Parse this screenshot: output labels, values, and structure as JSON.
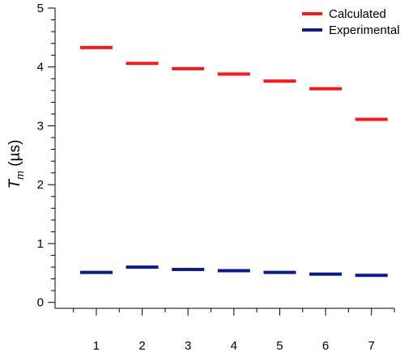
{
  "chart_data": {
    "type": "scatter",
    "marker": "horizontal-dash",
    "title": "",
    "xlabel": "",
    "ylabel": {
      "symbol": "T",
      "subscript": "m",
      "unit": " (µs)"
    },
    "x": [
      1,
      2,
      3,
      4,
      5,
      6,
      7
    ],
    "xlim": [
      0.1,
      7.5
    ],
    "ylim": [
      -0.1,
      5
    ],
    "xticks": [
      1,
      2,
      3,
      4,
      5,
      6,
      7
    ],
    "yticks": [
      0,
      1,
      2,
      3,
      4,
      5
    ],
    "grid": false,
    "legend_position": "top-right",
    "series": [
      {
        "name": "Calculated",
        "color": "#ee1c1c",
        "values": [
          4.33,
          4.06,
          3.97,
          3.88,
          3.76,
          3.63,
          3.11
        ]
      },
      {
        "name": "Experimental",
        "color": "#0e1a8a",
        "values": [
          0.51,
          0.6,
          0.56,
          0.54,
          0.51,
          0.48,
          0.46
        ]
      }
    ]
  }
}
